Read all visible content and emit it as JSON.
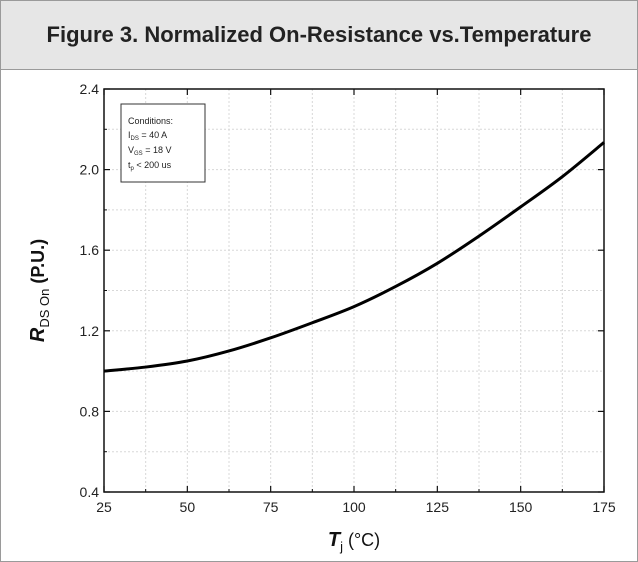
{
  "figure": {
    "title": "Figure 3. Normalized On-Resistance vs.Temperature"
  },
  "conditions": {
    "heading": "Conditions:",
    "lines": [
      {
        "main": "I",
        "sub": "DS",
        "rest": " = 40 A"
      },
      {
        "main": "V",
        "sub": "GS",
        "rest": " = 18 V"
      },
      {
        "main": "t",
        "sub": "p",
        "rest": " < 200 us"
      }
    ]
  },
  "chart_data": {
    "type": "line",
    "title": "Figure 3. Normalized On-Resistance vs.Temperature",
    "xlabel": {
      "main": "T",
      "sub": "j",
      "unit": " (°C)"
    },
    "ylabel": {
      "main": "R",
      "sub": "DS On",
      "unit": " (P.U.)"
    },
    "xlim": [
      25,
      175
    ],
    "ylim": [
      0.4,
      2.4
    ],
    "xticks": [
      25,
      50,
      75,
      100,
      125,
      150,
      175
    ],
    "yticks": [
      0.4,
      0.8,
      1.2,
      1.6,
      2.0,
      2.4
    ],
    "ytick_labels": [
      "0.4",
      "0.8",
      "1.2",
      "1.6",
      "2.0",
      "2.4"
    ],
    "grid": true,
    "series": [
      {
        "x": [
          25,
          37.5,
          50,
          62.5,
          75,
          87.5,
          100,
          112.5,
          125,
          137.5,
          150,
          162.5,
          175
        ],
        "y": [
          1.0,
          1.02,
          1.05,
          1.1,
          1.165,
          1.24,
          1.32,
          1.42,
          1.535,
          1.67,
          1.815,
          1.965,
          2.135
        ]
      }
    ]
  }
}
